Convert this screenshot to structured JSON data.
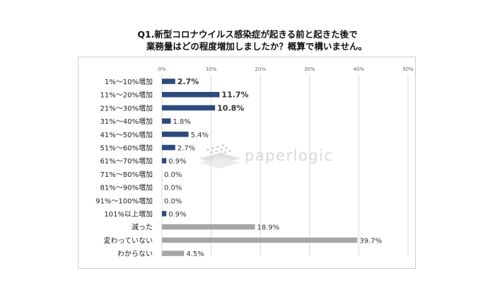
{
  "chart_data": {
    "type": "bar",
    "orientation": "horizontal",
    "title": "Q1.新型コロナウイルス感染症が起きる前と起きた後で\n業務量はどの程度増加しましたか？概算で構いません。",
    "categories": [
      "1%〜10%増加",
      "11%〜20%増加",
      "21%〜30%増加",
      "31%〜40%増加",
      "41%〜50%増加",
      "51%〜60%増加",
      "61%〜70%増加",
      "71%〜80%増加",
      "81%〜90%増加",
      "91%〜100%増加",
      "101%以上増加",
      "減った",
      "変わっていない",
      "わからない"
    ],
    "values": [
      2.7,
      11.7,
      10.8,
      1.8,
      5.4,
      2.7,
      0.9,
      0.0,
      0.0,
      0.0,
      0.9,
      18.9,
      39.7,
      4.5
    ],
    "value_labels": [
      "2.7%",
      "11.7%",
      "10.8%",
      "1.8%",
      "5.4%",
      "2.7%",
      "0.9%",
      "0.0%",
      "0.0%",
      "0.0%",
      "0.9%",
      "18.9%",
      "39.7%",
      "4.5%"
    ],
    "emphasized_labels": [
      true,
      true,
      true,
      false,
      false,
      false,
      false,
      false,
      false,
      false,
      false,
      false,
      false,
      false
    ],
    "bar_colors": [
      "#2e4a7d",
      "#2e4a7d",
      "#2e4a7d",
      "#2e4a7d",
      "#2e4a7d",
      "#2e4a7d",
      "#2e4a7d",
      "#2e4a7d",
      "#2e4a7d",
      "#2e4a7d",
      "#2e4a7d",
      "#a6a6a6",
      "#a6a6a6",
      "#a6a6a6"
    ],
    "xlim": [
      0,
      50
    ],
    "x_ticks": [
      0,
      10,
      20,
      30,
      40,
      50
    ],
    "x_tick_labels": [
      "0%",
      "10%",
      "20%",
      "30%",
      "40%",
      "50%"
    ],
    "x_axis_position": "top",
    "grid": true,
    "legend": "none"
  },
  "watermark": {
    "text": "paperlogic",
    "icon": "paperlogic-logo-icon"
  },
  "colors": {
    "increase_bar": "#2e4a7d",
    "other_bar": "#a6a6a6",
    "gridline": "#d9d9d9",
    "text": "#333333"
  }
}
